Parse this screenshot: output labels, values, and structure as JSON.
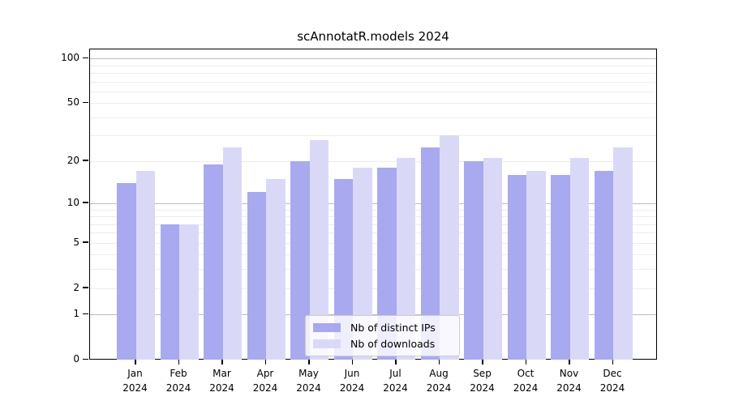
{
  "title": "scAnnotatR.models 2024",
  "chart_data": {
    "type": "bar",
    "title": "scAnnotatR.models 2024",
    "categories": [
      "Jan",
      "Feb",
      "Mar",
      "Apr",
      "May",
      "Jun",
      "Jul",
      "Aug",
      "Sep",
      "Oct",
      "Nov",
      "Dec"
    ],
    "year_label": "2024",
    "series": [
      {
        "name": "Nb of distinct IPs",
        "color": "#a9a9f0",
        "values": [
          14,
          7,
          19,
          12,
          20,
          15,
          18,
          25,
          20,
          16,
          16,
          17
        ]
      },
      {
        "name": "Nb of downloads",
        "color": "#d9d9f7",
        "values": [
          17,
          7,
          25,
          15,
          28,
          18,
          21,
          30,
          21,
          17,
          21,
          25
        ]
      }
    ],
    "xlabel": "",
    "ylabel": "",
    "y_scale": "log1p",
    "y_max": 115,
    "y_tick_values": [
      0,
      1,
      2,
      5,
      10,
      20,
      50,
      100
    ],
    "y_major_gridlines": [
      1,
      10,
      100
    ],
    "y_minor_gridlines": [
      2,
      3,
      4,
      5,
      6,
      7,
      8,
      9,
      20,
      30,
      40,
      50,
      60,
      70,
      80,
      90
    ],
    "grid": true,
    "legend_position": "inside-bottom-center",
    "colors": {
      "major_grid": "#bdbdbd",
      "minor_grid": "#ececec",
      "axis": "#000000",
      "background": "#ffffff"
    }
  }
}
